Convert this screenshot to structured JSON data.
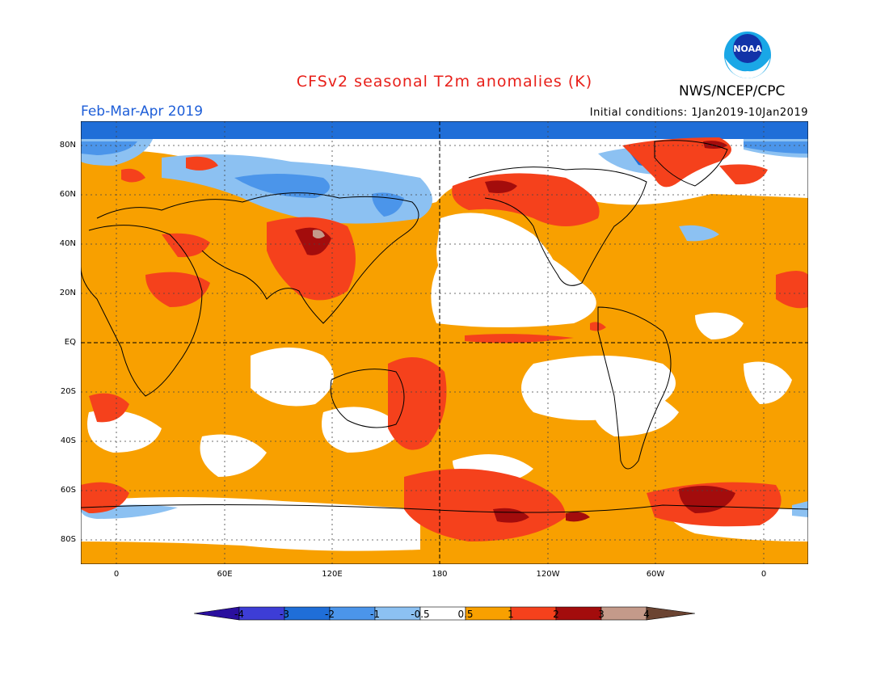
{
  "header": {
    "title": "CFSv2 seasonal T2m anomalies (K)",
    "agency": "NWS/NCEP/CPC",
    "period": "Feb-Mar-Apr 2019",
    "initial_conditions": "Initial conditions: 1Jan2019-10Jan2019",
    "logo_text": "NOAA"
  },
  "axes": {
    "lat_labels": [
      "80N",
      "60N",
      "40N",
      "20N",
      "EQ",
      "20S",
      "40S",
      "60S",
      "80S"
    ],
    "lon_labels": [
      "0",
      "60E",
      "120E",
      "180",
      "120W",
      "60W",
      "0"
    ]
  },
  "colorbar": {
    "labels": [
      "-4",
      "-3",
      "-2",
      "-1",
      "-0.5",
      "0.5",
      "1",
      "2",
      "3",
      "4"
    ],
    "colors": [
      "#2a0f9e",
      "#3d3dd6",
      "#1f6ed8",
      "#4b95ea",
      "#8cc1f2",
      "#ffffff",
      "#f8a000",
      "#f5411c",
      "#a30c0c",
      "#c49a8a",
      "#6b4432"
    ]
  },
  "colors": {
    "title": "#e8201a",
    "period": "#1e5ed8",
    "warm_light": "#f8a000",
    "warm_mid": "#f5411c",
    "warm_dark": "#a30c0c",
    "warm_extreme": "#c49a8a",
    "cool_light": "#8cc1f2",
    "cool_mid": "#4b95ea",
    "cool_dark": "#1f6ed8",
    "cool_extreme": "#3d3dd6"
  }
}
